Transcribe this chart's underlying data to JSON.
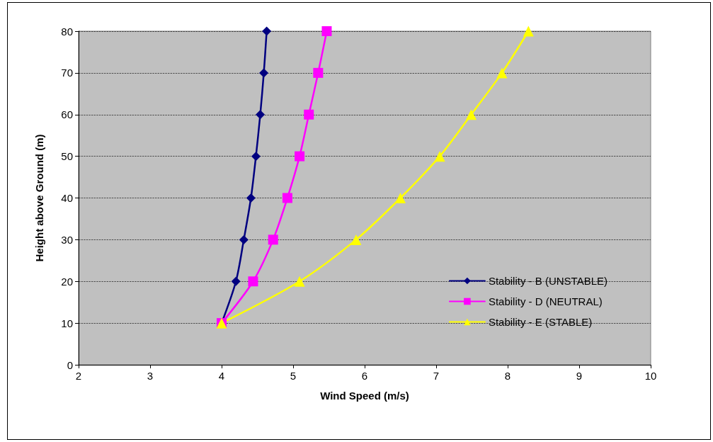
{
  "chart_data": {
    "type": "line",
    "xlabel": "Wind Speed (m/s)",
    "ylabel": "Height above Ground (m)",
    "xlim": [
      2,
      10
    ],
    "xticks": [
      2,
      3,
      4,
      5,
      6,
      7,
      8,
      9,
      10
    ],
    "ylim": [
      0,
      80
    ],
    "yticks": [
      0,
      10,
      20,
      30,
      40,
      50,
      60,
      70,
      80
    ],
    "grid": "y",
    "legend": "bottom right",
    "line_style": "solid",
    "series": [
      {
        "name": "Stability - B (UNSTABLE)",
        "color": "#000080",
        "marker": "diamond",
        "x": [
          4.0,
          4.2,
          4.31,
          4.41,
          4.48,
          4.54,
          4.59,
          4.63
        ],
        "values": [
          10,
          20,
          30,
          40,
          50,
          60,
          70,
          80
        ]
      },
      {
        "name": "Stability - D (NEUTRAL)",
        "color": "#ff00ff",
        "marker": "square",
        "x": [
          4.0,
          4.44,
          4.72,
          4.92,
          5.09,
          5.22,
          5.35,
          5.47
        ],
        "values": [
          10,
          20,
          30,
          40,
          50,
          60,
          70,
          80
        ]
      },
      {
        "name": "Stability - E (STABLE)",
        "color": "#ffff00",
        "marker": "triangle",
        "x": [
          4.0,
          5.09,
          5.88,
          6.5,
          7.05,
          7.49,
          7.92,
          8.29
        ],
        "values": [
          10,
          20,
          30,
          40,
          50,
          60,
          70,
          80
        ]
      }
    ]
  }
}
